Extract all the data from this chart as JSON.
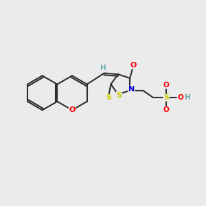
{
  "bg_color": "#ebebeb",
  "bond_color": "#2d2d2d",
  "atom_colors": {
    "O": "#ff0000",
    "N": "#0000cd",
    "S": "#cccc00",
    "H": "#6aabab",
    "C": "#2d2d2d"
  },
  "figsize": [
    3.0,
    3.0
  ],
  "dpi": 100,
  "xlim": [
    0,
    10
  ],
  "ylim": [
    0,
    10
  ]
}
